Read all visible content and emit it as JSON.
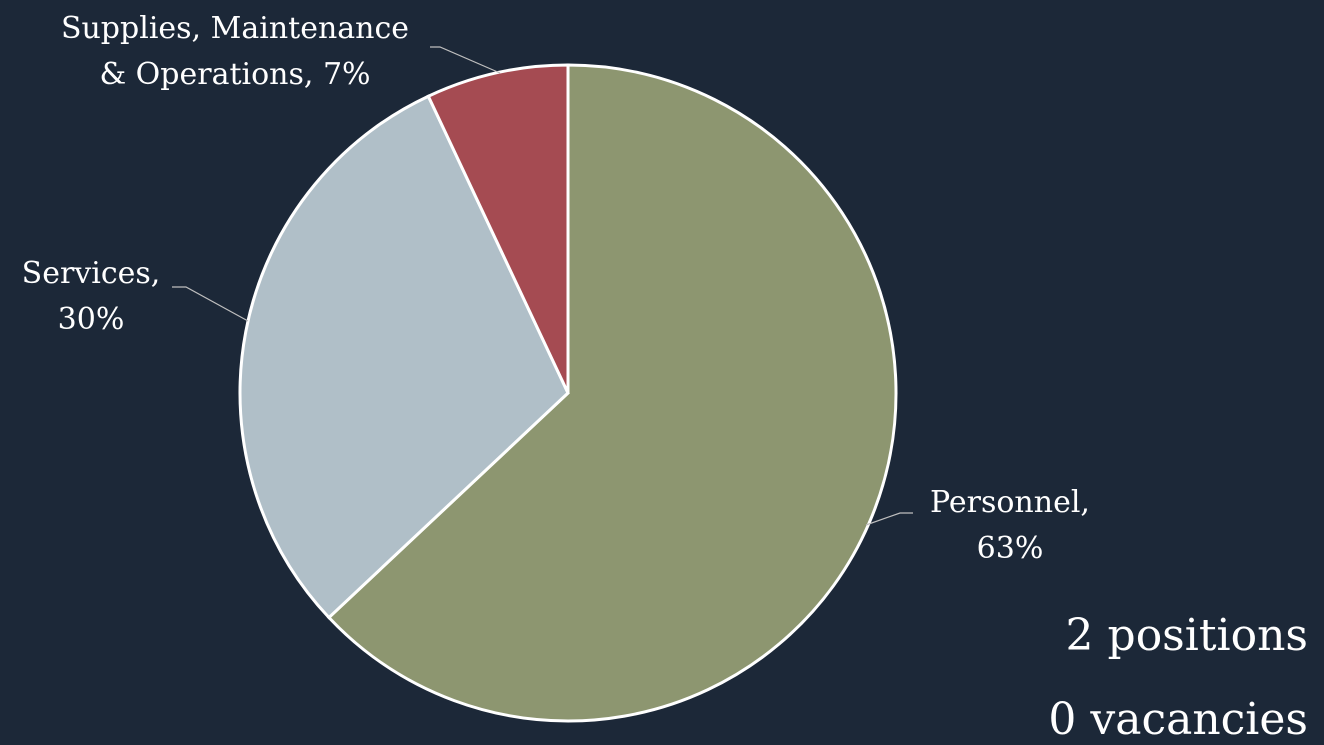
{
  "chart_data": {
    "type": "pie",
    "title": "",
    "slices": [
      {
        "label": "Personnel",
        "value": 63,
        "value_label": "63%",
        "color": "#8d9670"
      },
      {
        "label": "Services",
        "value": 30,
        "value_label": "30%",
        "color": "#b0bfc8"
      },
      {
        "label": "Supplies, Maintenance & Operations",
        "value": 7,
        "value_label": "7%",
        "color": "#a54b52"
      }
    ],
    "start_angle": "12 o'clock",
    "direction": "clockwise",
    "legend": "none (category and value shown as data labels with leader lines)"
  },
  "notes": {
    "positions": "2 positions",
    "vacancies": "0 vacancies"
  },
  "colors": {
    "background": "#1c2838",
    "text": "#ffffff",
    "slice_border": "#ffffff",
    "leader_line": "#bfbfbf"
  }
}
